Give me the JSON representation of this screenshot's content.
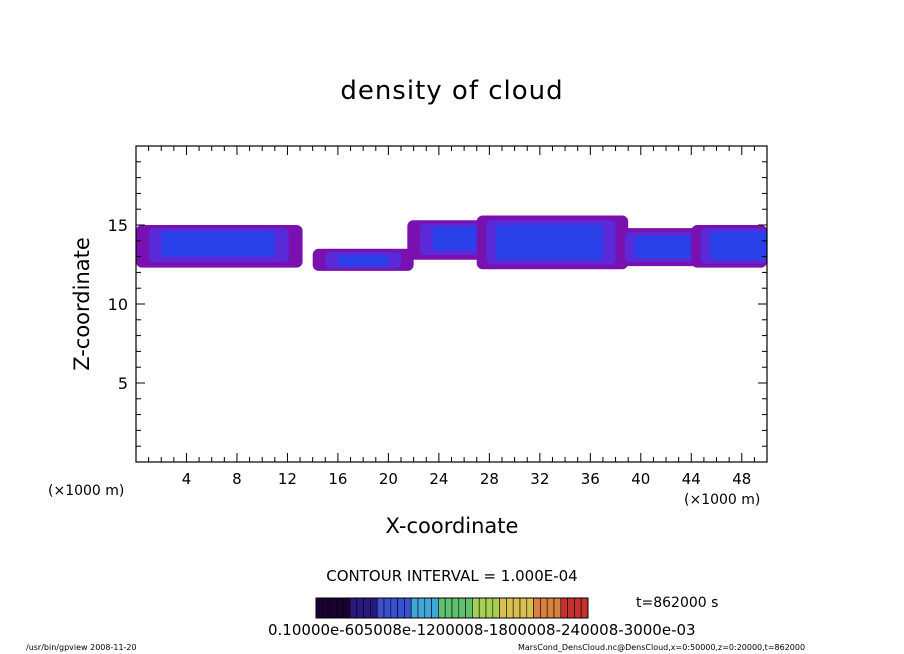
{
  "chart_data": {
    "type": "heatmap",
    "title": "density of cloud",
    "xlabel": "X-coordinate",
    "ylabel": "Z-coordinate",
    "x_unit_left": "(×1000 m)",
    "x_unit_right": "(×1000 m)",
    "xlim": [
      0,
      50
    ],
    "ylim": [
      0,
      20
    ],
    "x_ticks": [
      4,
      8,
      12,
      16,
      20,
      24,
      28,
      32,
      36,
      40,
      44,
      48
    ],
    "y_ticks": [
      5,
      10,
      15
    ],
    "contour_interval": "CONTOUR INTERVAL = 1.000E-04",
    "time_label": "t=862000 s",
    "colorbar_ticks_text": "0.10000e-605008e-1200008-1800008-240008-3000e-03",
    "colorbar_colors": [
      "#1a0030",
      "#2a1a80",
      "#3a50d0",
      "#40a8d8",
      "#60c070",
      "#a8d050",
      "#d8c050",
      "#d88040",
      "#c83030"
    ],
    "cloud_regions": [
      {
        "x0": 0.0,
        "x1": 13.2,
        "z0": 12.3,
        "z1": 15.0,
        "core_x0": 2.0,
        "core_x1": 11.0,
        "core_z0": 13.0,
        "core_z1": 14.6
      },
      {
        "x0": 14.0,
        "x1": 22.0,
        "z0": 12.1,
        "z1": 13.5,
        "core_x0": 16.0,
        "core_x1": 20.0,
        "core_z0": 12.4,
        "core_z1": 13.1
      },
      {
        "x0": 21.5,
        "x1": 29.0,
        "z0": 12.8,
        "z1": 15.3,
        "core_x0": 23.5,
        "core_x1": 27.5,
        "core_z0": 13.4,
        "core_z1": 14.9
      },
      {
        "x0": 27.0,
        "x1": 39.0,
        "z0": 12.2,
        "z1": 15.6,
        "core_x0": 28.5,
        "core_x1": 37.0,
        "core_z0": 12.8,
        "core_z1": 15.0
      },
      {
        "x0": 38.0,
        "x1": 45.5,
        "z0": 12.4,
        "z1": 14.8,
        "core_x0": 39.5,
        "core_x1": 44.0,
        "core_z0": 12.9,
        "core_z1": 14.3
      },
      {
        "x0": 44.0,
        "x1": 50.0,
        "z0": 12.3,
        "z1": 15.0,
        "core_x0": 45.5,
        "core_x1": 50.0,
        "core_z0": 12.8,
        "core_z1": 14.6
      }
    ],
    "colors": {
      "outer": "#7a10b0",
      "mid": "#5a2ad8",
      "core": "#2a40e8",
      "axis": "#000000"
    }
  },
  "footer": {
    "left": "/usr/bin/gpview   2008-11-20",
    "right": "MarsCond_DensCloud.nc@DensCloud,x=0:50000,z=0:20000,t=862000"
  }
}
